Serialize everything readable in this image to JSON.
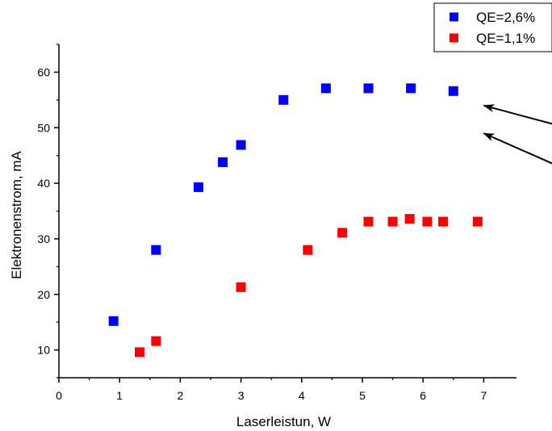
{
  "chart_data": {
    "type": "scatter",
    "xlabel": "Laserleistun, W",
    "ylabel": "Elektronenstrom, mA",
    "xlim": [
      0,
      7.5
    ],
    "ylim": [
      5,
      65
    ],
    "x_ticks": [
      0,
      1,
      2,
      3,
      4,
      5,
      6,
      7
    ],
    "y_ticks": [
      10,
      20,
      30,
      40,
      50,
      60
    ],
    "grid": false,
    "legend_position": "top-right",
    "series": [
      {
        "name": "QE=2,6%",
        "color": "#0000ff",
        "marker": "square",
        "points": [
          {
            "x": 0.9,
            "y": 15.2
          },
          {
            "x": 1.6,
            "y": 28.0
          },
          {
            "x": 2.3,
            "y": 39.3
          },
          {
            "x": 2.7,
            "y": 43.8
          },
          {
            "x": 3.0,
            "y": 46.9
          },
          {
            "x": 3.7,
            "y": 55.0
          },
          {
            "x": 4.4,
            "y": 57.1
          },
          {
            "x": 5.1,
            "y": 57.1
          },
          {
            "x": 5.8,
            "y": 57.1
          },
          {
            "x": 6.5,
            "y": 56.6
          }
        ]
      },
      {
        "name": "QE=1,1%",
        "color": "#ff0000",
        "marker": "square",
        "points": [
          {
            "x": 1.33,
            "y": 9.6
          },
          {
            "x": 1.6,
            "y": 11.6
          },
          {
            "x": 3.0,
            "y": 21.3
          },
          {
            "x": 4.1,
            "y": 28.0
          },
          {
            "x": 4.67,
            "y": 31.1
          },
          {
            "x": 5.1,
            "y": 33.1
          },
          {
            "x": 5.5,
            "y": 33.1
          },
          {
            "x": 5.78,
            "y": 33.6
          },
          {
            "x": 6.07,
            "y": 33.1
          },
          {
            "x": 6.33,
            "y": 33.1
          },
          {
            "x": 6.9,
            "y": 33.1
          }
        ]
      }
    ],
    "annotations": [
      {
        "type": "arrow",
        "points_to": {
          "x": 7.0,
          "y": 54
        }
      },
      {
        "type": "arrow",
        "points_to": {
          "x": 7.0,
          "y": 49
        }
      }
    ]
  }
}
